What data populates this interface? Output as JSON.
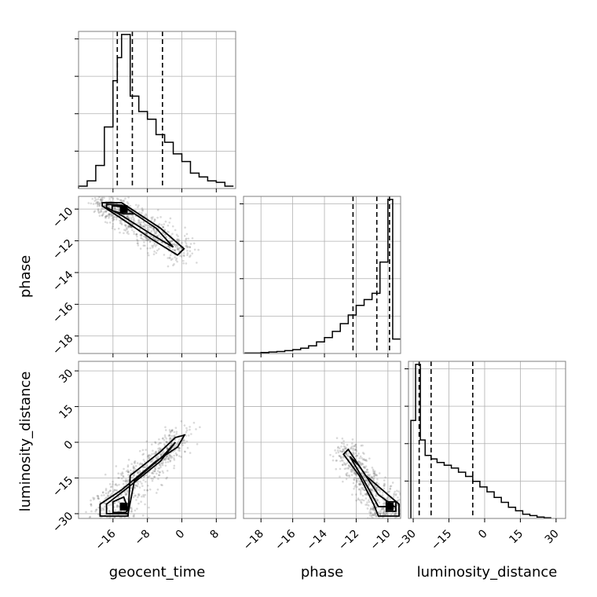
{
  "chart_data": {
    "type": "corner",
    "parameters": [
      "geocent_time",
      "phase",
      "luminosity_distance"
    ],
    "axes": {
      "geocent_time": {
        "range": [
          -24,
          12.5
        ],
        "ticks": [
          -16,
          -8,
          0,
          8
        ],
        "tick_labels": [
          "−16",
          "−8",
          "0",
          "8"
        ]
      },
      "phase": {
        "range": [
          -19.1,
          -9.2
        ],
        "ticks": [
          -18,
          -16,
          -14,
          -12,
          -10
        ],
        "tick_labels": [
          "−18",
          "−16",
          "−14",
          "−12",
          "−10"
        ]
      },
      "luminosity_distance": {
        "range": [
          -32,
          34
        ],
        "ticks": [
          -30,
          -15,
          0,
          15,
          30
        ],
        "tick_labels": [
          "−30",
          "−15",
          "0",
          "15",
          "30"
        ]
      }
    },
    "quantiles": {
      "geocent_time": [
        -15.0,
        -11.5,
        -4.5
      ],
      "phase": [
        -12.2,
        -10.7,
        -9.9
      ],
      "luminosity_distance": [
        -27.5,
        -22.5,
        -5.0
      ]
    },
    "histograms": {
      "geocent_time": {
        "edges": [
          -24,
          -22,
          -20,
          -18,
          -16,
          -15,
          -14,
          -12,
          -10,
          -8,
          -6,
          -4,
          -2,
          0,
          2,
          4,
          6,
          8,
          10,
          12
        ],
        "counts": [
          0.3,
          1.0,
          3.0,
          8.0,
          14.0,
          17.0,
          20.0,
          12.0,
          10.0,
          9.0,
          7.0,
          6.0,
          4.5,
          3.5,
          2.0,
          1.5,
          1.0,
          0.8,
          0.3
        ]
      },
      "phase": {
        "edges": [
          -19.0,
          -18.5,
          -18.0,
          -17.5,
          -17.0,
          -16.5,
          -16.0,
          -15.5,
          -15.0,
          -14.5,
          -14.0,
          -13.5,
          -13.0,
          -12.5,
          -12.0,
          -11.5,
          -11.0,
          -10.5,
          -10.0,
          -9.7,
          -9.2
        ],
        "counts": [
          0.1,
          0.1,
          0.2,
          0.3,
          0.4,
          0.6,
          0.8,
          1.1,
          1.6,
          2.4,
          3.3,
          4.6,
          6.2,
          8.0,
          10.0,
          11.2,
          12.5,
          19.0,
          32.0,
          3.0
        ]
      },
      "luminosity_distance": {
        "edges": [
          -31,
          -29,
          -27,
          -25,
          -22.5,
          -20,
          -17,
          -14,
          -11,
          -8,
          -5,
          -2,
          1,
          4,
          7,
          10,
          13,
          16,
          19,
          22,
          25,
          28
        ],
        "counts": [
          14,
          22,
          11.2,
          9.0,
          8.5,
          8.0,
          7.6,
          7.2,
          6.6,
          6.0,
          5.3,
          4.5,
          3.8,
          3.0,
          2.3,
          1.6,
          1.1,
          0.6,
          0.4,
          0.2,
          0.1
        ]
      }
    },
    "contours_2d": {
      "phase_vs_geocent_time": [
        [
          [
            -18.5,
            -9.6
          ],
          [
            -14,
            -9.6
          ],
          [
            -5,
            -11.2
          ],
          [
            0.5,
            -12.5
          ],
          [
            -1,
            -12.9
          ],
          [
            -7,
            -11.9
          ],
          [
            -14,
            -10.6
          ],
          [
            -18.5,
            -9.8
          ]
        ],
        [
          [
            -17.5,
            -9.7
          ],
          [
            -14,
            -9.75
          ],
          [
            -6,
            -11.2
          ],
          [
            -2,
            -12.4
          ],
          [
            -7,
            -11.6
          ],
          [
            -14,
            -10.4
          ],
          [
            -17.5,
            -9.9
          ]
        ],
        [
          [
            -16.2,
            -9.8
          ],
          [
            -13.5,
            -9.85
          ],
          [
            -11,
            -10.3
          ],
          [
            -13.5,
            -10.3
          ],
          [
            -16.2,
            -10.1
          ]
        ]
      ],
      "luminosity_distance_vs_geocent_time": [
        [
          [
            -19,
            -31
          ],
          [
            -19,
            -26
          ],
          [
            -14,
            -20
          ],
          [
            -6,
            -8
          ],
          [
            -1,
            -2
          ],
          [
            0.6,
            3
          ],
          [
            -1.5,
            2
          ],
          [
            -5,
            -4
          ],
          [
            -12,
            -14
          ],
          [
            -12.5,
            -31
          ]
        ],
        [
          [
            -17.5,
            -30
          ],
          [
            -17.5,
            -26
          ],
          [
            -12.5,
            -19
          ],
          [
            -5,
            -8
          ],
          [
            -1.5,
            0
          ],
          [
            -4.5,
            -6
          ],
          [
            -11,
            -16
          ],
          [
            -12.5,
            -30
          ]
        ],
        [
          [
            -16,
            -29.5
          ],
          [
            -16,
            -25
          ],
          [
            -13.5,
            -23
          ],
          [
            -12.5,
            -28
          ],
          [
            -13,
            -29.5
          ]
        ]
      ],
      "luminosity_distance_vs_phase": [
        [
          [
            -12.8,
            -5
          ],
          [
            -11.8,
            -14
          ],
          [
            -10.9,
            -26
          ],
          [
            -10.6,
            -31
          ],
          [
            -9.3,
            -31
          ],
          [
            -9.3,
            -26
          ],
          [
            -11.4,
            -14
          ],
          [
            -12.5,
            -3
          ]
        ],
        [
          [
            -12.4,
            -6
          ],
          [
            -11.6,
            -15
          ],
          [
            -10.6,
            -27
          ],
          [
            -9.6,
            -27
          ],
          [
            -10.6,
            -22
          ],
          [
            -11.8,
            -10
          ]
        ],
        [
          [
            -10.1,
            -25
          ],
          [
            -9.5,
            -25
          ],
          [
            -9.5,
            -29
          ],
          [
            -10.1,
            -29
          ]
        ]
      ]
    },
    "peaks_2d": {
      "phase_vs_geocent_time": [
        -13.5,
        -10.0
      ],
      "luminosity_distance_vs_geocent_time": [
        -13.5,
        -27.0
      ],
      "luminosity_distance_vs_phase": [
        -9.9,
        -27.0
      ]
    },
    "grid": true
  }
}
